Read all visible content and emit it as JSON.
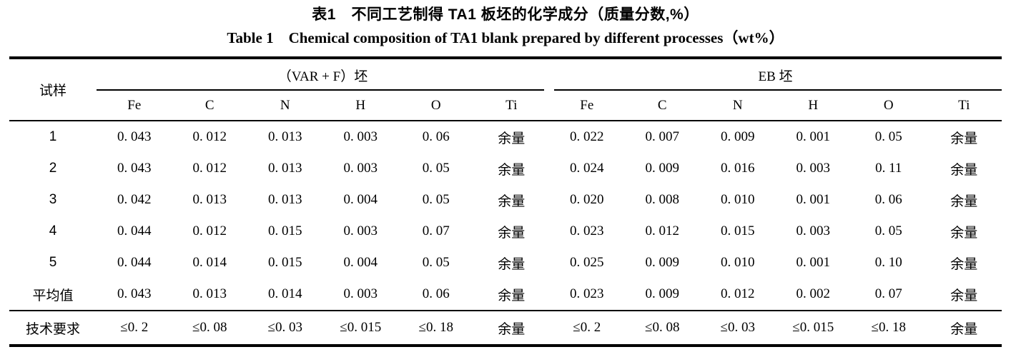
{
  "titles": {
    "zh": "表1　不同工艺制得 TA1 板坯的化学成分（质量分数,%）",
    "en": "Table 1　Chemical composition of TA1 blank prepared by different processes（wt%）"
  },
  "table": {
    "sample_header": "试样",
    "groups": [
      {
        "label": "（VAR + F）坯",
        "columns": [
          "Fe",
          "C",
          "N",
          "H",
          "O",
          "Ti"
        ]
      },
      {
        "label": "EB 坯",
        "columns": [
          "Fe",
          "C",
          "N",
          "H",
          "O",
          "Ti"
        ]
      }
    ],
    "rows": [
      {
        "label": "1",
        "var_f": [
          "0. 043",
          "0. 012",
          "0. 013",
          "0. 003",
          "0. 06",
          "余量"
        ],
        "eb": [
          "0. 022",
          "0. 007",
          "0. 009",
          "0. 001",
          "0. 05",
          "余量"
        ],
        "spec": false
      },
      {
        "label": "2",
        "var_f": [
          "0. 043",
          "0. 012",
          "0. 013",
          "0. 003",
          "0. 05",
          "余量"
        ],
        "eb": [
          "0. 024",
          "0. 009",
          "0. 016",
          "0. 003",
          "0. 11",
          "余量"
        ],
        "spec": false
      },
      {
        "label": "3",
        "var_f": [
          "0. 042",
          "0. 013",
          "0. 013",
          "0. 004",
          "0. 05",
          "余量"
        ],
        "eb": [
          "0. 020",
          "0. 008",
          "0. 010",
          "0. 001",
          "0. 06",
          "余量"
        ],
        "spec": false
      },
      {
        "label": "4",
        "var_f": [
          "0. 044",
          "0. 012",
          "0. 015",
          "0. 003",
          "0. 07",
          "余量"
        ],
        "eb": [
          "0. 023",
          "0. 012",
          "0. 015",
          "0. 003",
          "0. 05",
          "余量"
        ],
        "spec": false
      },
      {
        "label": "5",
        "var_f": [
          "0. 044",
          "0. 014",
          "0. 015",
          "0. 004",
          "0. 05",
          "余量"
        ],
        "eb": [
          "0. 025",
          "0. 009",
          "0. 010",
          "0. 001",
          "0. 10",
          "余量"
        ],
        "spec": false
      },
      {
        "label": "平均值",
        "var_f": [
          "0. 043",
          "0. 013",
          "0. 014",
          "0. 003",
          "0. 06",
          "余量"
        ],
        "eb": [
          "0. 023",
          "0. 009",
          "0. 012",
          "0. 002",
          "0. 07",
          "余量"
        ],
        "spec": false
      },
      {
        "label": "技术要求",
        "var_f": [
          "≤0. 2",
          "≤0. 08",
          "≤0. 03",
          "≤0. 015",
          "≤0. 18",
          "余量"
        ],
        "eb": [
          "≤0. 2",
          "≤0. 08",
          "≤0. 03",
          "≤0. 015",
          "≤0. 18",
          "余量"
        ],
        "spec": true
      }
    ]
  }
}
